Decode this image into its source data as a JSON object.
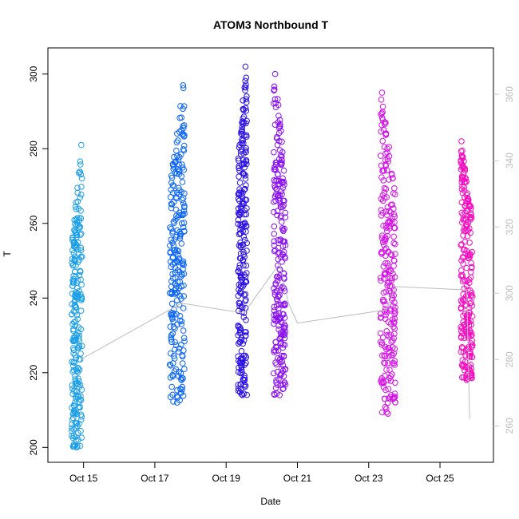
{
  "chart_data": {
    "type": "scatter",
    "title": "ATOM3 Northbound T",
    "xlabel": "Date",
    "ylabel": "T",
    "x_axis": {
      "type": "date",
      "range": [
        "2014-10-14T00:00",
        "2014-10-26T12:00"
      ],
      "tick_labels": [
        {
          "date": "2014-10-15",
          "label": "Oct 15"
        },
        {
          "date": "2014-10-17",
          "label": "Oct 17"
        },
        {
          "date": "2014-10-19",
          "label": "Oct 19"
        },
        {
          "date": "2014-10-21",
          "label": "Oct 21"
        },
        {
          "date": "2014-10-23",
          "label": "Oct 23"
        },
        {
          "date": "2014-10-25",
          "label": "Oct 25"
        }
      ]
    },
    "y_axis_left": {
      "range": [
        196,
        307
      ],
      "ticks": [
        200,
        220,
        240,
        260,
        280,
        300
      ],
      "tick_labels": [
        "200",
        "220",
        "240",
        "260",
        "280",
        "300"
      ]
    },
    "y_axis_right": {
      "range": [
        249,
        374
      ],
      "ticks": [
        260,
        280,
        300,
        320,
        340,
        360
      ],
      "tick_labels": [
        "260",
        "280",
        "300",
        "320",
        "340",
        "360"
      ],
      "color": "#c8c8c8"
    },
    "grid": false,
    "marker": "open-circle",
    "series": [
      {
        "date": "2014-10-14T18:00",
        "x_start": "2014-10-14T16:00",
        "x_end": "2014-10-14T23:00",
        "y_min": 200,
        "y_max": 281,
        "peak_time": "2014-10-14T22:30",
        "color": "#1a9ee8"
      },
      {
        "date": "2014-10-17T16:00",
        "x_start": "2014-10-17T10:00",
        "x_end": "2014-10-17T20:00",
        "y_min": 212,
        "y_max": 297,
        "peak_time": "2014-10-17T19:00",
        "color": "#0a64f5"
      },
      {
        "date": "2014-10-19T12:00",
        "x_start": "2014-10-19T08:00",
        "x_end": "2014-10-19T14:00",
        "y_min": 214,
        "y_max": 302,
        "peak_time": "2014-10-19T13:00",
        "color": "#2a10e6"
      },
      {
        "date": "2014-10-20T12:00",
        "x_start": "2014-10-20T08:00",
        "x_end": "2014-10-20T16:00",
        "y_min": 214,
        "y_max": 300,
        "peak_time": "2014-10-20T09:00",
        "color": "#8a10f0"
      },
      {
        "date": "2014-10-23T12:00",
        "x_start": "2014-10-23T08:00",
        "x_end": "2014-10-23T18:00",
        "y_min": 209,
        "y_max": 295,
        "peak_time": "2014-10-23T09:00",
        "color": "#d411e8"
      },
      {
        "date": "2014-10-25T18:00",
        "x_start": "2014-10-25T14:00",
        "x_end": "2014-10-25T22:00",
        "y_min": 218,
        "y_max": 282,
        "peak_time": "2014-10-25T14:30",
        "color": "#f50cc0"
      }
    ],
    "secondary_line": {
      "color": "#bdbdbd",
      "axis": "right",
      "points": [
        {
          "x": "2014-10-14T22:00",
          "y": 280
        },
        {
          "x": "2014-10-17T18:00",
          "y": 297
        },
        {
          "x": "2014-10-19T12:00",
          "y": 294
        },
        {
          "x": "2014-10-20T12:00",
          "y": 309
        },
        {
          "x": "2014-10-20T18:00",
          "y": 297
        },
        {
          "x": "2014-10-21T00:00",
          "y": 291
        },
        {
          "x": "2014-10-23T12:00",
          "y": 295
        },
        {
          "x": "2014-10-23T18:00",
          "y": 302
        },
        {
          "x": "2014-10-25T18:00",
          "y": 301
        },
        {
          "x": "2014-10-25T20:00",
          "y": 262
        }
      ]
    }
  }
}
